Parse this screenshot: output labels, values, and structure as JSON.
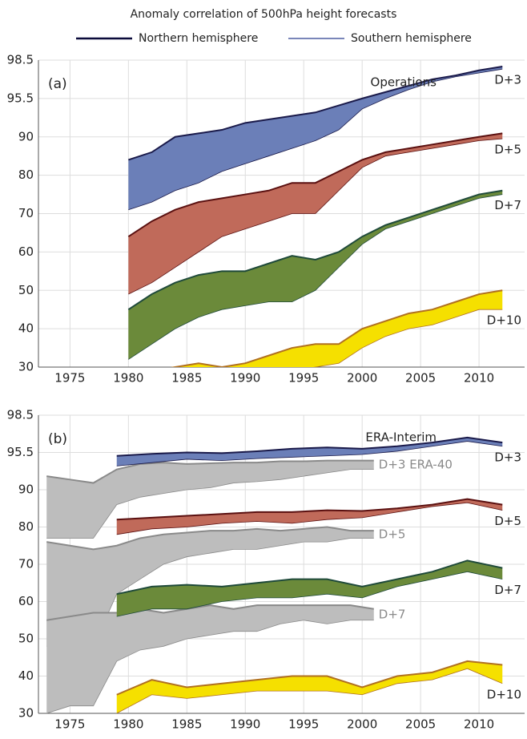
{
  "title": "Anomaly correlation of 500hPa height forecasts",
  "legend": [
    {
      "name": "Northern hemisphere",
      "color": "#0a0a3a"
    },
    {
      "name": "Southern hemisphere",
      "color": "#2a3f8f"
    }
  ],
  "chart_data": [
    {
      "type": "band",
      "panel_label": "(a)",
      "annotation": "Operations",
      "xlim": [
        1972.3,
        2013.9
      ],
      "xticks": [
        1975,
        1980,
        1985,
        1990,
        1995,
        2000,
        2005,
        2010
      ],
      "ylim": [
        30,
        98.5
      ],
      "yticks": [
        30,
        40,
        50,
        60,
        70,
        80,
        90,
        95.5,
        98.5
      ],
      "grid": true,
      "series": [
        {
          "name": "D+3",
          "color": "#6b7fb8",
          "line_color": "#1a1a4a",
          "x": [
            1980,
            1982,
            1984,
            1986,
            1988,
            1990,
            1992,
            1994,
            1996,
            1998,
            2000,
            2002,
            2004,
            2006,
            2008,
            2010,
            2012
          ],
          "upper": [
            84,
            86,
            90,
            90.5,
            91,
            92,
            92.5,
            93,
            93.5,
            94.5,
            95.5,
            96,
            96.5,
            97,
            97.3,
            97.7,
            98
          ],
          "lower": [
            71,
            73,
            76,
            78,
            81,
            83,
            85,
            87,
            89,
            91,
            94,
            95.5,
            96.2,
            96.8,
            97.2,
            97.5,
            97.8
          ]
        },
        {
          "name": "D+5",
          "color": "#c06a5a",
          "line_color": "#5a1010",
          "x": [
            1980,
            1982,
            1984,
            1986,
            1988,
            1990,
            1992,
            1994,
            1996,
            1998,
            2000,
            2002,
            2004,
            2006,
            2008,
            2010,
            2012
          ],
          "upper": [
            64,
            68,
            71,
            73,
            74,
            75,
            76,
            78,
            78,
            81,
            84,
            86,
            87,
            88,
            89,
            90,
            90.5
          ],
          "lower": [
            49,
            52,
            56,
            60,
            64,
            66,
            68,
            70,
            70,
            76,
            82,
            85,
            86,
            87,
            88,
            89,
            89.5
          ]
        },
        {
          "name": "D+7",
          "color": "#6b8a3a",
          "line_color": "#1f4a3a",
          "x": [
            1980,
            1982,
            1984,
            1986,
            1988,
            1990,
            1992,
            1994,
            1996,
            1998,
            2000,
            2002,
            2004,
            2006,
            2008,
            2010,
            2012
          ],
          "upper": [
            45,
            49,
            52,
            54,
            55,
            55,
            57,
            59,
            58,
            60,
            64,
            67,
            69,
            71,
            73,
            75,
            76
          ],
          "lower": [
            32,
            36,
            40,
            43,
            45,
            46,
            47,
            47,
            50,
            56,
            62,
            66,
            68,
            70,
            72,
            74,
            75
          ]
        },
        {
          "name": "D+10",
          "color": "#f5e000",
          "line_color": "#b07020",
          "x": [
            1980,
            1982,
            1984,
            1986,
            1988,
            1990,
            1992,
            1994,
            1996,
            1998,
            2000,
            2002,
            2004,
            2006,
            2008,
            2010,
            2012
          ],
          "upper": [
            28,
            29,
            30,
            31,
            30,
            31,
            33,
            35,
            36,
            36,
            40,
            42,
            44,
            45,
            47,
            49,
            50
          ],
          "lower": [
            26,
            26,
            27,
            27,
            27,
            28,
            28,
            29,
            30,
            31,
            35,
            38,
            40,
            41,
            43,
            45,
            45
          ]
        }
      ]
    },
    {
      "type": "band",
      "panel_label": "(b)",
      "annotation": "ERA-Interim",
      "xlim": [
        1972.3,
        2013.9
      ],
      "xticks": [
        1975,
        1980,
        1985,
        1990,
        1995,
        2000,
        2005,
        2010
      ],
      "ylim": [
        30,
        98.5
      ],
      "yticks": [
        30,
        40,
        50,
        60,
        70,
        80,
        90,
        95.5,
        98.5
      ],
      "grid": true,
      "series": [
        {
          "name": "D+3 ERA-40",
          "color": "#bdbdbd",
          "line_color": "#8a8a8a",
          "x": [
            1973,
            1975,
            1977,
            1979,
            1981,
            1983,
            1985,
            1987,
            1989,
            1991,
            1993,
            1995,
            1997,
            1999,
            2001
          ],
          "upper": [
            92,
            91.5,
            91,
            93,
            93.8,
            94,
            93.8,
            93.9,
            94,
            94,
            94.2,
            94.2,
            94.3,
            94.3,
            94.3
          ],
          "lower": [
            77,
            77,
            77,
            86,
            88,
            89,
            90,
            90.3,
            91,
            91.2,
            91.5,
            92,
            92.5,
            93,
            93
          ]
        },
        {
          "name": "D+5",
          "color": "#bdbdbd",
          "line_color": "#8a8a8a",
          "x": [
            1973,
            1975,
            1977,
            1979,
            1981,
            1983,
            1985,
            1987,
            1989,
            1991,
            1993,
            1995,
            1997,
            1999,
            2001
          ],
          "upper": [
            76,
            75,
            74,
            75,
            77,
            78,
            78.5,
            79,
            79,
            79.5,
            79,
            79.5,
            80,
            79,
            79
          ],
          "lower": [
            48,
            47,
            48,
            62,
            66,
            70,
            72,
            73,
            74,
            74,
            75,
            76,
            76,
            77,
            77
          ]
        },
        {
          "name": "D+7",
          "color": "#bdbdbd",
          "line_color": "#8a8a8a",
          "x": [
            1973,
            1975,
            1977,
            1979,
            1981,
            1983,
            1985,
            1987,
            1989,
            1991,
            1993,
            1995,
            1997,
            1999,
            2001
          ],
          "upper": [
            55,
            56,
            57,
            57,
            58,
            57,
            58,
            59,
            58,
            59,
            59,
            59,
            59,
            59,
            58
          ],
          "lower": [
            30,
            32,
            32,
            44,
            47,
            48,
            50,
            51,
            52,
            52,
            54,
            55,
            54,
            55,
            55
          ]
        },
        {
          "name": "D+3",
          "color": "#6b7fb8",
          "line_color": "#1a1a4a",
          "x": [
            1979,
            1982,
            1985,
            1988,
            1991,
            1994,
            1997,
            2000,
            2003,
            2006,
            2009,
            2012
          ],
          "upper": [
            95,
            95.3,
            95.5,
            95.4,
            95.6,
            95.8,
            95.9,
            95.8,
            96,
            96.3,
            96.7,
            96.3
          ],
          "lower": [
            93.5,
            94,
            94.5,
            94.3,
            94.6,
            94.8,
            95,
            95.2,
            95.6,
            96,
            96.4,
            96
          ]
        },
        {
          "name": "D+5",
          "color": "#c06a5a",
          "line_color": "#5a1010",
          "x": [
            1979,
            1982,
            1985,
            1988,
            1991,
            1994,
            1997,
            2000,
            2003,
            2006,
            2009,
            2012
          ],
          "upper": [
            82,
            82.5,
            83,
            83.5,
            84,
            84,
            84.5,
            84.3,
            85,
            86,
            87.5,
            86
          ],
          "lower": [
            78,
            79.5,
            80,
            81,
            81.5,
            81,
            82,
            82.5,
            84,
            85.5,
            86.5,
            84.5
          ]
        },
        {
          "name": "D+7",
          "color": "#6b8a3a",
          "line_color": "#1f4a3a",
          "x": [
            1979,
            1982,
            1985,
            1988,
            1991,
            1994,
            1997,
            2000,
            2003,
            2006,
            2009,
            2012
          ],
          "upper": [
            62,
            64,
            64.5,
            64,
            65,
            66,
            66,
            64,
            66,
            68,
            71,
            69
          ],
          "lower": [
            56,
            58,
            58,
            60,
            61,
            61,
            62,
            61,
            64,
            66,
            68,
            66
          ]
        },
        {
          "name": "D+10",
          "color": "#f5e000",
          "line_color": "#b07020",
          "x": [
            1979,
            1982,
            1985,
            1988,
            1991,
            1994,
            1997,
            2000,
            2003,
            2006,
            2009,
            2012
          ],
          "upper": [
            35,
            39,
            37,
            38,
            39,
            40,
            40,
            37,
            40,
            41,
            44,
            43
          ],
          "lower": [
            30,
            35,
            34,
            35,
            36,
            36,
            36,
            35,
            38,
            39,
            42,
            38
          ]
        }
      ]
    }
  ]
}
